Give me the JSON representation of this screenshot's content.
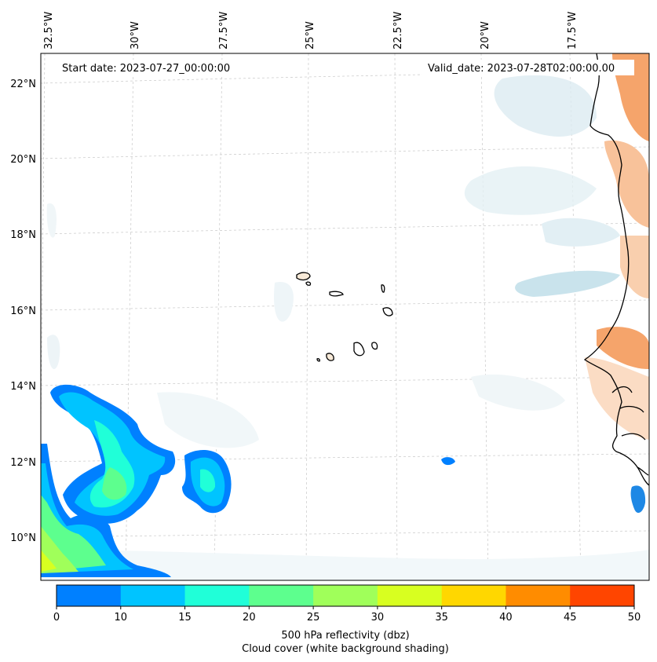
{
  "map": {
    "start_label": "Start date: 2023-07-27_00:00:00",
    "valid_label": "Valid_date: 2023-07-28T02:00:00.00",
    "lon_ticks": [
      "32.5°W",
      "30°W",
      "27.5°W",
      "25°W",
      "22.5°W",
      "20°W",
      "17.5°W"
    ],
    "lat_ticks": [
      "22°N",
      "20°N",
      "18°N",
      "16°N",
      "14°N",
      "12°N",
      "10°N"
    ],
    "colorbar": {
      "colors": [
        "#0080ff",
        "#00c4ff",
        "#20ffd8",
        "#5dff8e",
        "#a0ff5a",
        "#d8ff20",
        "#ffd700",
        "#ff8c00",
        "#ff4500"
      ],
      "ticks": [
        "0",
        "10",
        "15",
        "20",
        "25",
        "30",
        "35",
        "40",
        "45",
        "50"
      ],
      "label_line1": "500 hPa reflectivity (dbz)",
      "label_line2": "Cloud cover (white background shading)"
    }
  }
}
